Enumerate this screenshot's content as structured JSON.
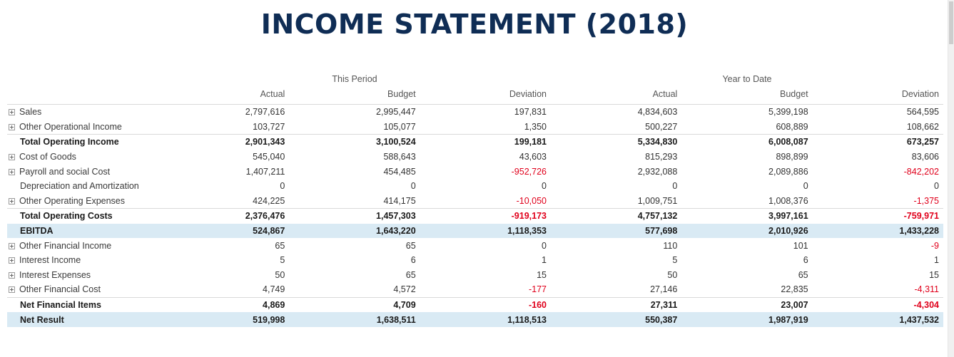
{
  "title": "INCOME STATEMENT (2018)",
  "groups": {
    "this_period": "This Period",
    "year_to_date": "Year to Date"
  },
  "columns": [
    "Actual",
    "Budget",
    "Deviation",
    "Actual",
    "Budget",
    "Deviation"
  ],
  "rows": [
    {
      "label": "Sales",
      "expandable": true,
      "type": "item",
      "values": [
        "2,797,616",
        "2,995,447",
        "197,831",
        "4,834,603",
        "5,399,198",
        "564,595"
      ]
    },
    {
      "label": "Other Operational Income",
      "expandable": true,
      "type": "item",
      "values": [
        "103,727",
        "105,077",
        "1,350",
        "500,227",
        "608,889",
        "108,662"
      ]
    },
    {
      "label": "Total Operating Income",
      "expandable": false,
      "type": "total",
      "values": [
        "2,901,343",
        "3,100,524",
        "199,181",
        "5,334,830",
        "6,008,087",
        "673,257"
      ]
    },
    {
      "label": "Cost of Goods",
      "expandable": true,
      "type": "item",
      "values": [
        "545,040",
        "588,643",
        "43,603",
        "815,293",
        "898,899",
        "83,606"
      ]
    },
    {
      "label": "Payroll and social Cost",
      "expandable": true,
      "type": "item",
      "values": [
        "1,407,211",
        "454,485",
        "-952,726",
        "2,932,088",
        "2,089,886",
        "-842,202"
      ]
    },
    {
      "label": "Depreciation and Amortization",
      "expandable": false,
      "type": "item",
      "values": [
        "0",
        "0",
        "0",
        "0",
        "0",
        "0"
      ]
    },
    {
      "label": "Other Operating Expenses",
      "expandable": true,
      "type": "item",
      "values": [
        "424,225",
        "414,175",
        "-10,050",
        "1,009,751",
        "1,008,376",
        "-1,375"
      ]
    },
    {
      "label": "Total Operating Costs",
      "expandable": false,
      "type": "total",
      "values": [
        "2,376,476",
        "1,457,303",
        "-919,173",
        "4,757,132",
        "3,997,161",
        "-759,971"
      ]
    },
    {
      "label": "EBITDA",
      "expandable": false,
      "type": "highlight",
      "values": [
        "524,867",
        "1,643,220",
        "1,118,353",
        "577,698",
        "2,010,926",
        "1,433,228"
      ]
    },
    {
      "label": "Other Financial Income",
      "expandable": true,
      "type": "item",
      "values": [
        "65",
        "65",
        "0",
        "110",
        "101",
        "-9"
      ]
    },
    {
      "label": "Interest Income",
      "expandable": true,
      "type": "item",
      "values": [
        "5",
        "6",
        "1",
        "5",
        "6",
        "1"
      ]
    },
    {
      "label": "Interest Expenses",
      "expandable": true,
      "type": "item",
      "values": [
        "50",
        "65",
        "15",
        "50",
        "65",
        "15"
      ]
    },
    {
      "label": "Other Financial Cost",
      "expandable": true,
      "type": "item",
      "values": [
        "4,749",
        "4,572",
        "-177",
        "27,146",
        "22,835",
        "-4,311"
      ]
    },
    {
      "label": "Net Financial Items",
      "expandable": false,
      "type": "total",
      "values": [
        "4,869",
        "4,709",
        "-160",
        "27,311",
        "23,007",
        "-4,304"
      ]
    },
    {
      "label": "Net Result",
      "expandable": false,
      "type": "highlight",
      "values": [
        "519,998",
        "1,638,511",
        "1,118,513",
        "550,387",
        "1,987,919",
        "1,437,532"
      ]
    }
  ],
  "colors": {
    "title": "#0f2d55",
    "negative": "#e0001b",
    "highlight_row": "#d9eaf4"
  }
}
